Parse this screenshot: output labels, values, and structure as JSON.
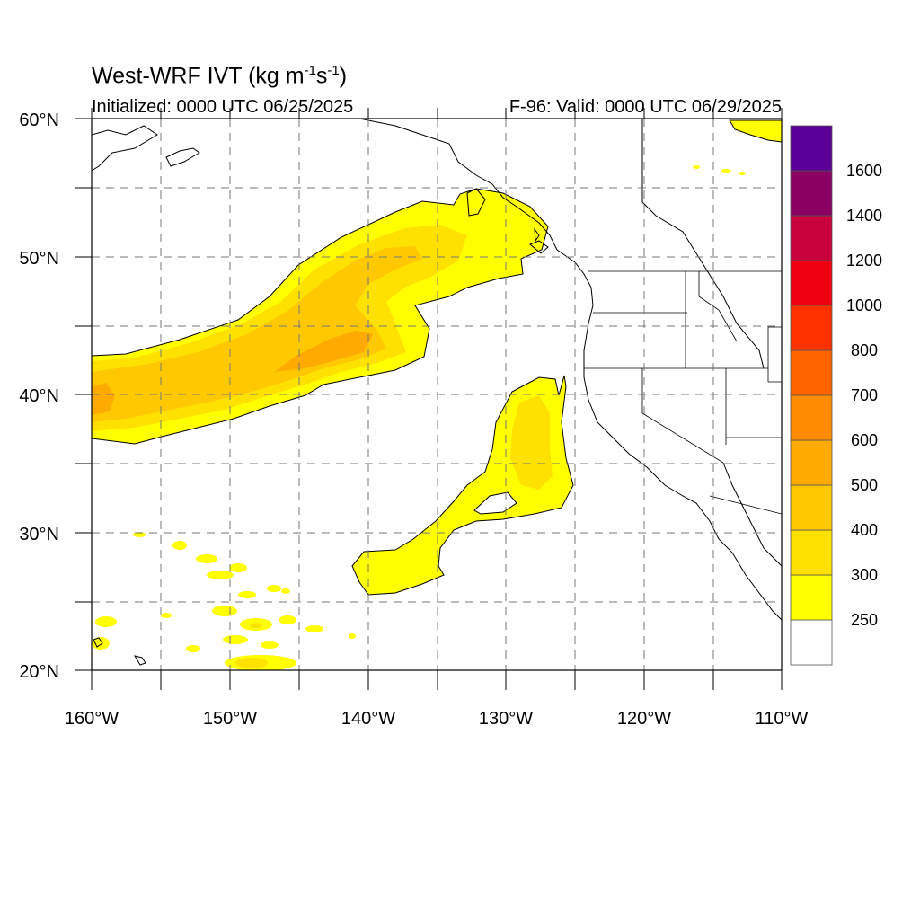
{
  "title": {
    "main": "West-WRF IVT (kg m",
    "sup1": "-1",
    "mid": "s",
    "sup2": "-1",
    "end": ")"
  },
  "init_text": "Initialized: 0000 UTC 06/25/2025",
  "valid_text": "F-96: Valid: 0000 UTC 06/29/2025",
  "lat_labels": [
    "60°N",
    "50°N",
    "40°N",
    "30°N",
    "20°N"
  ],
  "lon_labels": [
    "160°W",
    "150°W",
    "140°W",
    "130°W",
    "120°W",
    "110°W"
  ],
  "extent": {
    "lon": [
      -160,
      -110
    ],
    "lat": [
      20,
      60
    ]
  },
  "colorbar": {
    "levels": [
      "250",
      "300",
      "400",
      "500",
      "600",
      "700",
      "800",
      "1000",
      "1200",
      "1400",
      "1600"
    ],
    "colors": [
      "#ffffff",
      "#ffff00",
      "#ffe100",
      "#ffc800",
      "#ffaa00",
      "#ff8c00",
      "#ff6400",
      "#ff3200",
      "#ee0011",
      "#c8003c",
      "#8b0063",
      "#5a0096"
    ]
  },
  "ivt_colors": {
    "c250": "#ffff00",
    "c300": "#ffe100",
    "c400": "#ffc800",
    "c500": "#ffaa00"
  }
}
